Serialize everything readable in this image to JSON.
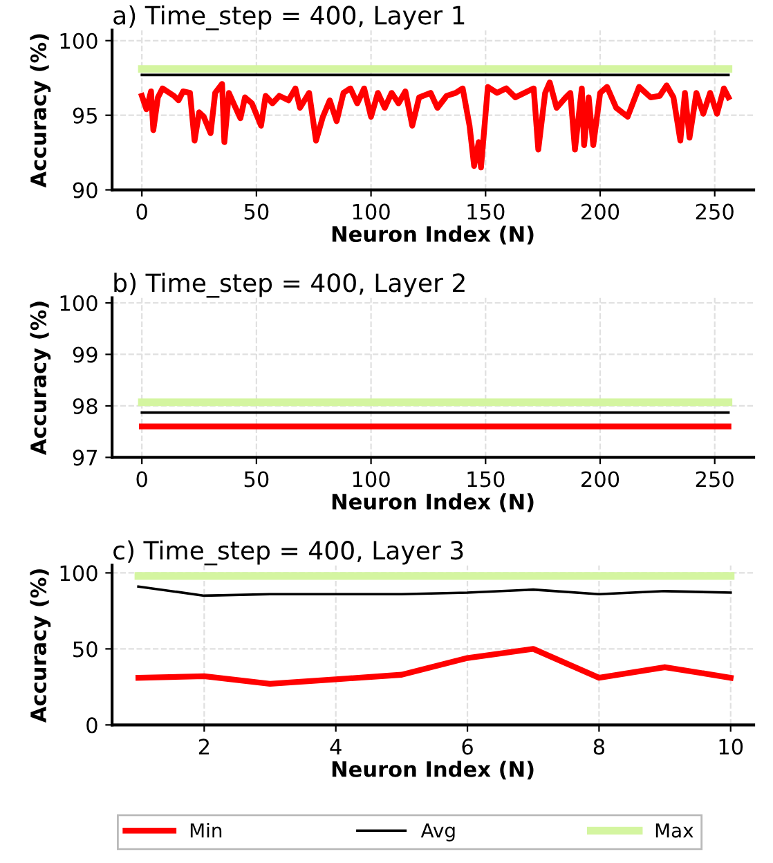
{
  "chart_data": [
    {
      "type": "line",
      "title": "a) Time_step = 400, Layer 1",
      "xlabel": "Neuron Index (N)",
      "ylabel": "Accuracy (%)",
      "xlim": [
        -13,
        267
      ],
      "ylim": [
        90,
        100.7
      ],
      "xticks": [
        0,
        50,
        100,
        150,
        200,
        250
      ],
      "yticks": [
        90,
        95,
        100
      ],
      "grid": true,
      "line_style": "solid",
      "marker": "none",
      "legend": "bottom",
      "series": [
        {
          "name": "Min",
          "color": "#ff0000",
          "x": [
            0,
            2,
            4,
            5,
            7,
            9,
            14,
            16,
            18,
            21,
            23,
            25,
            27,
            30,
            32,
            35,
            36,
            38,
            40,
            43,
            45,
            48,
            52,
            54,
            57,
            60,
            64,
            67,
            69,
            73,
            76,
            79,
            82,
            85,
            88,
            91,
            94,
            97,
            100,
            103,
            106,
            109,
            112,
            115,
            118,
            121,
            126,
            129,
            133,
            137,
            140,
            143,
            145,
            147,
            148,
            151,
            155,
            159,
            163,
            167,
            171,
            173,
            176,
            178,
            181,
            185,
            187,
            189,
            192,
            193,
            195,
            197,
            200,
            203,
            207,
            212,
            217,
            222,
            226,
            229,
            232,
            235,
            237,
            239,
            242,
            245,
            248,
            251,
            254,
            256
          ],
          "values": [
            96.3,
            95.4,
            96.6,
            94.0,
            96.2,
            96.8,
            96.3,
            96.0,
            96.6,
            96.5,
            93.3,
            95.2,
            94.9,
            93.8,
            96.5,
            97.1,
            93.2,
            96.5,
            95.8,
            94.8,
            96.2,
            95.8,
            94.3,
            96.3,
            95.8,
            96.3,
            96.0,
            96.8,
            95.5,
            96.5,
            93.3,
            94.9,
            96.0,
            94.6,
            96.5,
            96.8,
            95.8,
            96.8,
            94.9,
            96.5,
            95.5,
            96.5,
            95.8,
            96.6,
            94.3,
            96.2,
            96.5,
            95.5,
            96.3,
            96.5,
            96.8,
            94.3,
            91.6,
            93.2,
            91.5,
            96.9,
            96.5,
            96.8,
            96.2,
            96.5,
            96.8,
            92.7,
            96.5,
            97.2,
            95.5,
            96.2,
            96.5,
            92.7,
            96.8,
            93.0,
            96.2,
            93.0,
            96.5,
            96.9,
            95.5,
            94.9,
            96.9,
            96.2,
            96.3,
            97.0,
            96.2,
            93.3,
            96.5,
            93.5,
            96.5,
            95.1,
            96.5,
            95.1,
            96.8,
            96.2
          ]
        },
        {
          "name": "Avg",
          "color": "#000000",
          "x": [
            0,
            256
          ],
          "values": [
            97.7,
            97.7
          ]
        },
        {
          "name": "Max",
          "color": "#d4f5a0",
          "x": [
            0,
            256
          ],
          "values": [
            98.1,
            98.1
          ]
        }
      ]
    },
    {
      "type": "line",
      "title": "b) Time_step = 400, Layer 2",
      "xlabel": "Neuron Index (N)",
      "ylabel": "Accuracy (%)",
      "xlim": [
        -13,
        267
      ],
      "ylim": [
        97,
        100.1
      ],
      "xticks": [
        0,
        50,
        100,
        150,
        200,
        250
      ],
      "yticks": [
        97,
        98,
        99,
        100
      ],
      "grid": true,
      "line_style": "solid",
      "marker": "none",
      "series": [
        {
          "color": "#ff0000",
          "x": [
            0,
            256
          ],
          "values": [
            97.6,
            97.6
          ]
        },
        {
          "color": "#000000",
          "x": [
            0,
            256
          ],
          "values": [
            97.87,
            97.87
          ]
        },
        {
          "color": "#d4f5a0",
          "x": [
            0,
            256
          ],
          "values": [
            98.07,
            98.07
          ]
        }
      ]
    },
    {
      "type": "line",
      "title": "c) Time_step = 400, Layer 3",
      "xlabel": "Neuron Index (N)",
      "ylabel": "Accuracy (%)",
      "xlim": [
        0.6,
        10.35
      ],
      "ylim": [
        0,
        105
      ],
      "xticks": [
        2,
        4,
        6,
        8,
        10
      ],
      "yticks": [
        0,
        50,
        100
      ],
      "grid": true,
      "line_style": "solid",
      "marker": "none",
      "series": [
        {
          "color": "#ff0000",
          "x": [
            1,
            2,
            3,
            4,
            5,
            6,
            7,
            8,
            9,
            10
          ],
          "values": [
            31,
            32,
            27,
            30,
            33,
            44,
            50,
            31,
            38,
            31
          ]
        },
        {
          "color": "#000000",
          "x": [
            1,
            2,
            3,
            4,
            5,
            6,
            7,
            8,
            9,
            10
          ],
          "values": [
            91,
            85,
            86,
            86,
            86,
            87,
            89,
            86,
            88,
            87
          ]
        },
        {
          "color": "#d4f5a0",
          "x": [
            1,
            2,
            3,
            4,
            5,
            6,
            7,
            8,
            9,
            10
          ],
          "values": [
            98,
            98,
            98,
            98,
            98,
            98,
            98,
            98,
            98,
            98
          ]
        }
      ]
    }
  ]
}
